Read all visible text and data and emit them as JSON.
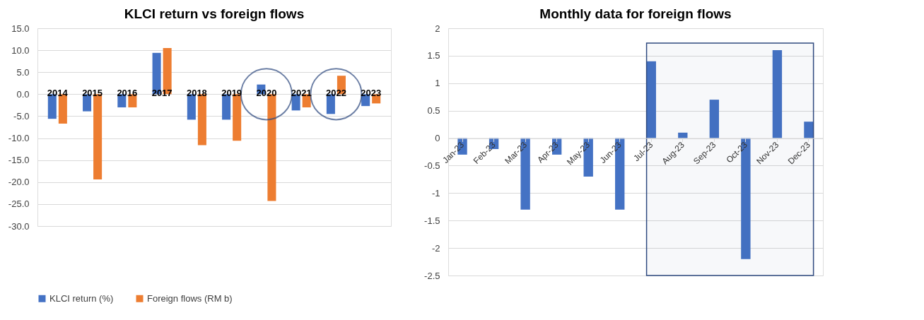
{
  "chart_data": [
    {
      "type": "bar",
      "title": "KLCI return vs foreign flows",
      "categories": [
        "2014",
        "2015",
        "2016",
        "2017",
        "2018",
        "2019",
        "2020",
        "2021",
        "2022",
        "2023"
      ],
      "series": [
        {
          "name": "KLCI return (%)",
          "color": "#4472c4",
          "values": [
            -5.6,
            -3.9,
            -3.0,
            9.4,
            -5.8,
            -5.8,
            2.2,
            -3.7,
            -4.5,
            -2.7
          ]
        },
        {
          "name": "Foreign flows (RM b)",
          "color": "#ed7d31",
          "values": [
            -6.7,
            -19.4,
            -3.0,
            10.5,
            -11.6,
            -10.6,
            -24.3,
            -3.0,
            4.2,
            -2.1
          ]
        }
      ],
      "ylim": [
        -30,
        15
      ],
      "yticks": [
        {
          "value": -30,
          "label": "-30.0"
        },
        {
          "value": -25,
          "label": "-25.0"
        },
        {
          "value": -20,
          "label": "-20.0"
        },
        {
          "value": -15,
          "label": "-15.0"
        },
        {
          "value": -10,
          "label": "-10.0"
        },
        {
          "value": -5,
          "label": "-5.0"
        },
        {
          "value": 0,
          "label": "0.0"
        },
        {
          "value": 5,
          "label": "5.0"
        },
        {
          "value": 10,
          "label": "10.0"
        },
        {
          "value": 15,
          "label": "15.0"
        }
      ],
      "grid": "y",
      "legend": "bottom"
    },
    {
      "type": "bar",
      "title": "Monthly data for foreign flows",
      "categories": [
        "Jan-23",
        "Feb-23",
        "Mar-23",
        "Apr-23",
        "May-23",
        "Jun-23",
        "Jul-23",
        "Aug-23",
        "Sep-23",
        "Oct-23",
        "Nov-23",
        "Dec-23"
      ],
      "series": [
        {
          "color": "#4472c4",
          "values": [
            -0.3,
            -0.2,
            -1.3,
            -0.3,
            -0.7,
            -1.3,
            1.4,
            0.1,
            0.7,
            -2.2,
            1.6,
            0.3
          ]
        }
      ],
      "ylim": [
        -2.5,
        2
      ],
      "yticks": [
        -2.5,
        -2,
        -1.5,
        -1,
        -0.5,
        0,
        0.5,
        1,
        1.5,
        2
      ],
      "grid": "y",
      "bands": [
        {
          "axis": "x",
          "from": "Jul-23",
          "to": "Dec-23",
          "color": "#2f4a7f"
        }
      ]
    }
  ]
}
